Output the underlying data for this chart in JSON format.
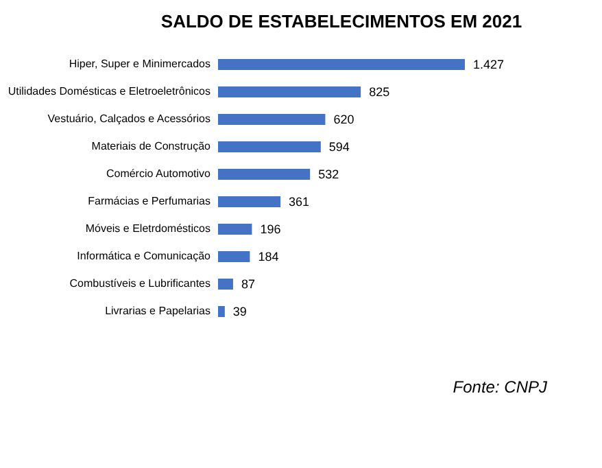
{
  "chart_data": {
    "type": "bar",
    "orientation": "horizontal",
    "title": "SALDO DE ESTABELECIMENTOS EM 2021",
    "categories": [
      "Hiper, Super e Minimercados",
      "Utilidades Domésticas e Eletroeletrônicos",
      "Vestuário, Calçados e Acessórios",
      "Materiais de Construção",
      "Comércio Automotivo",
      "Farmácias e Perfumarias",
      "Móveis e Eletrdomésticos",
      "Informática e Comunicação",
      "Combustíveis e Lubrificantes",
      "Livrarias e Papelarias"
    ],
    "values": [
      1427,
      825,
      620,
      594,
      532,
      361,
      196,
      184,
      87,
      39
    ],
    "value_labels": [
      "1.427",
      "825",
      "620",
      "594",
      "532",
      "361",
      "196",
      "184",
      "87",
      "39"
    ],
    "color": "#4472c4",
    "grid": false,
    "tick_labels": "y",
    "annotations": [
      "Fonte: CNPJ"
    ]
  }
}
